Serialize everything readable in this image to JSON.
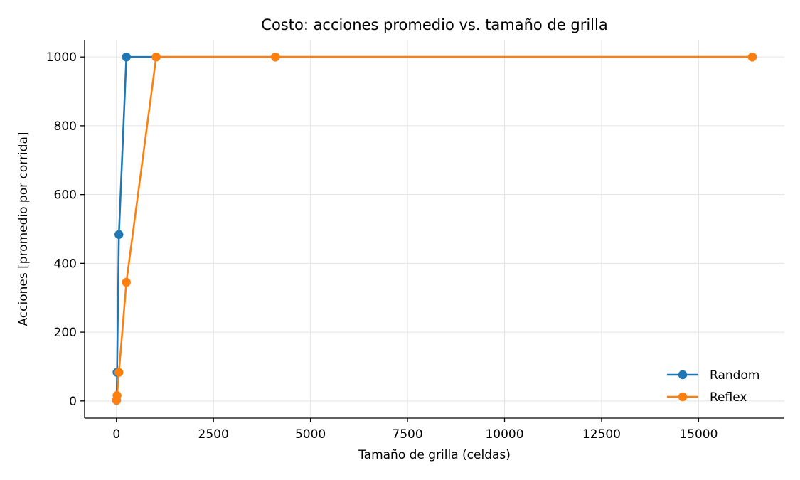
{
  "chart_data": {
    "type": "line",
    "title": "Costo: acciones promedio vs. tamaño de grilla",
    "xlabel": "Tamaño de grilla (celdas)",
    "ylabel": "Acciones [promedio por corrida]",
    "xlim": [
      -820,
      17210
    ],
    "ylim": [
      -50,
      1050
    ],
    "xticks": [
      0,
      2500,
      5000,
      7500,
      10000,
      12500,
      15000
    ],
    "yticks": [
      0,
      200,
      400,
      600,
      800,
      1000
    ],
    "grid": true,
    "legend_position": "bottom-right",
    "series": [
      {
        "name": "Random",
        "color": "#1f77b4",
        "marker": "circle",
        "x": [
          4,
          16,
          64,
          256,
          1024,
          4096,
          16384
        ],
        "y": [
          2,
          83,
          484,
          1000,
          1000,
          1000,
          1000
        ]
      },
      {
        "name": "Reflex",
        "color": "#ff7f0e",
        "marker": "circle",
        "x": [
          4,
          16,
          64,
          256,
          1024,
          4096,
          16384
        ],
        "y": [
          2,
          16,
          83,
          345,
          1000,
          1000,
          1000
        ]
      }
    ]
  }
}
